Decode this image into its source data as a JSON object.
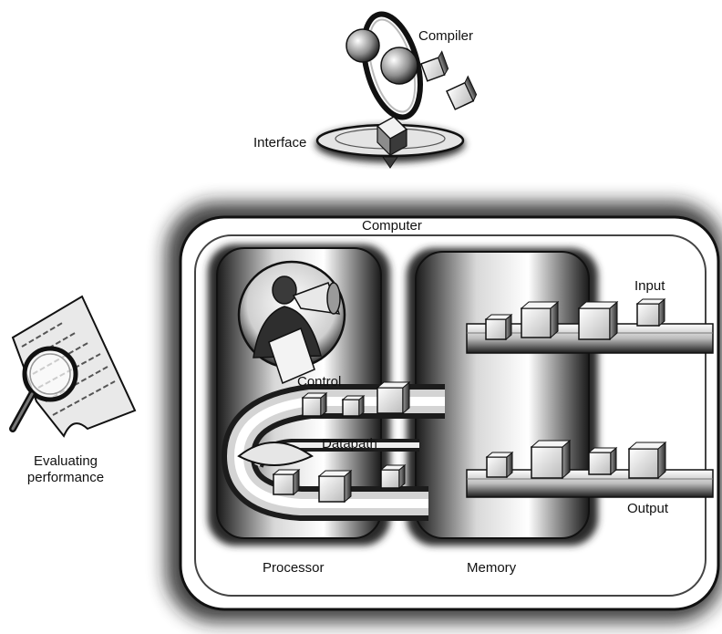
{
  "labels": {
    "compiler": "Compiler",
    "interface": "Interface",
    "computer": "Computer",
    "input": "Input",
    "control": "Control",
    "datapath": "Datapath",
    "output": "Output",
    "processor": "Processor",
    "memory": "Memory",
    "evaluating_line1": "Evaluating",
    "evaluating_line2": "performance"
  },
  "colors": {
    "ink": "#111111",
    "shade_dark": "#2a2a2a",
    "shade_mid": "#8a8a8a",
    "shade_light": "#d9d9d9",
    "paper": "#ffffff"
  }
}
